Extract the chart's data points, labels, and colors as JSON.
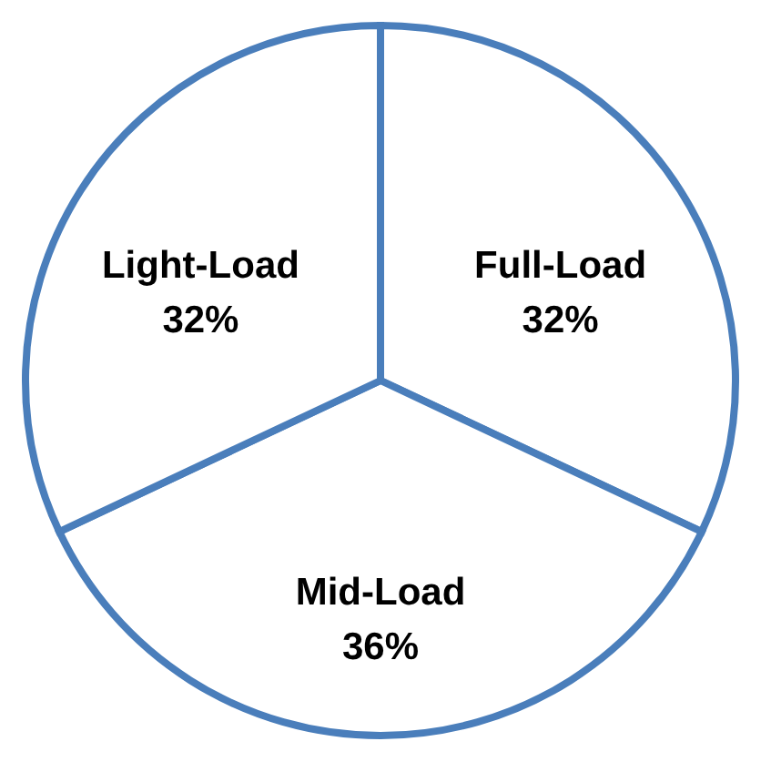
{
  "chart_data": {
    "type": "pie",
    "categories": [
      "Full-Load",
      "Mid-Load",
      "Light-Load"
    ],
    "values": [
      32,
      36,
      32
    ],
    "colors": [
      "#ffffff",
      "#ffffff",
      "#ffffff"
    ],
    "value_labels": [
      "32%",
      "36%",
      "32%"
    ],
    "legend": false
  }
}
